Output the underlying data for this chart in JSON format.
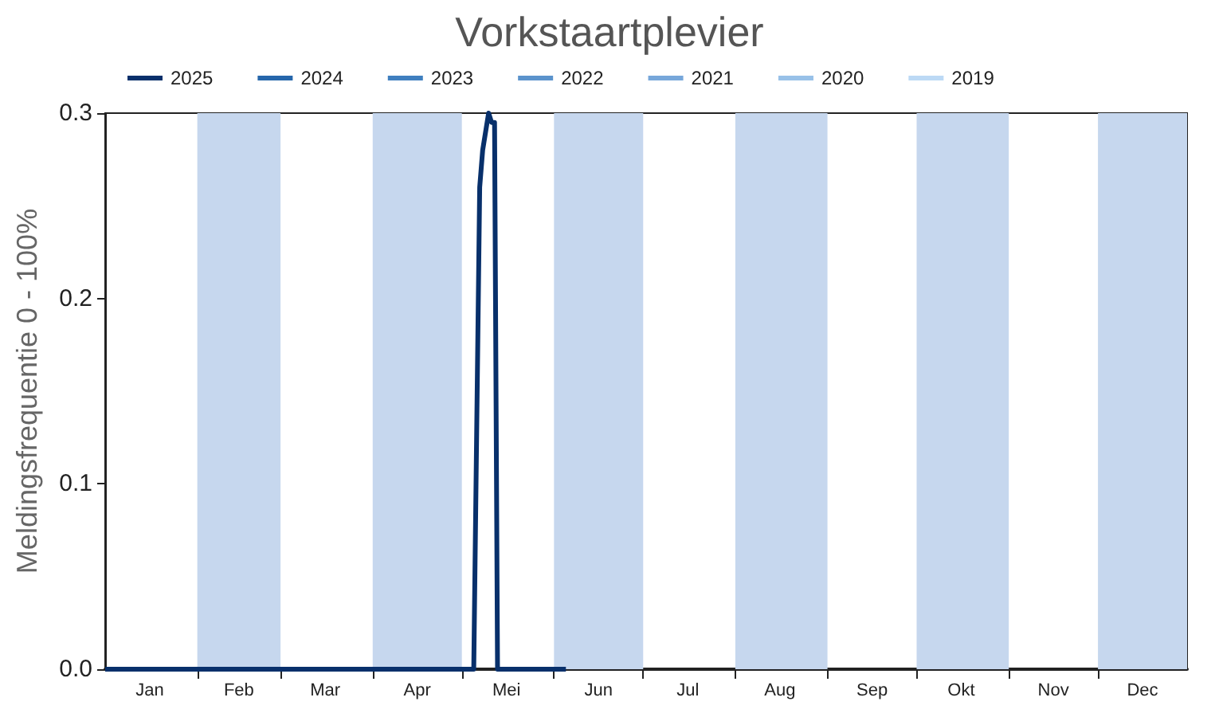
{
  "chart_data": {
    "type": "line",
    "title": "Vorkstaartplevier",
    "ylabel": "Meldingsfrequentie 0 - 100%",
    "series": [
      {
        "name": "2025",
        "color": "#08306b",
        "x": [
          "--01-01",
          "--05-05",
          "--05-07",
          "--05-08",
          "--05-10",
          "--05-11",
          "--05-12",
          "--05-13",
          "--06-05"
        ],
        "values": [
          0,
          0,
          0.26,
          0.28,
          0.3,
          0.295,
          0.295,
          0,
          0
        ]
      },
      {
        "name": "2024",
        "color": "#2666ab"
      },
      {
        "name": "2023",
        "color": "#3f7fbf"
      },
      {
        "name": "2022",
        "color": "#5b93cc"
      },
      {
        "name": "2021",
        "color": "#77a7da"
      },
      {
        "name": "2020",
        "color": "#98c1e8"
      },
      {
        "name": "2019",
        "color": "#bcd9f5"
      }
    ],
    "xlim": [
      "--01-01",
      "--12-31"
    ],
    "xticks": [
      {
        "value": "--01-16",
        "label": "Jan"
      },
      {
        "value": "--02-01",
        "label": null
      },
      {
        "value": "--02-15",
        "label": "Feb"
      },
      {
        "value": "--03-01",
        "label": null
      },
      {
        "value": "--03-16",
        "label": "Mar"
      },
      {
        "value": "--04-01",
        "label": null
      },
      {
        "value": "--04-16",
        "label": "Apr"
      },
      {
        "value": "--05-01",
        "label": null
      },
      {
        "value": "--05-16",
        "label": "Mei"
      },
      {
        "value": "--06-01",
        "label": null
      },
      {
        "value": "--06-16",
        "label": "Jun"
      },
      {
        "value": "--07-01",
        "label": null
      },
      {
        "value": "--07-16",
        "label": "Jul"
      },
      {
        "value": "--08-01",
        "label": null
      },
      {
        "value": "--08-16",
        "label": "Aug"
      },
      {
        "value": "--09-01",
        "label": null
      },
      {
        "value": "--09-16",
        "label": "Sep"
      },
      {
        "value": "--10-01",
        "label": null
      },
      {
        "value": "--10-16",
        "label": "Okt"
      },
      {
        "value": "--11-01",
        "label": null
      },
      {
        "value": "--11-16",
        "label": "Nov"
      },
      {
        "value": "--12-01",
        "label": null
      },
      {
        "value": "--12-16",
        "label": "Dec"
      }
    ],
    "ylim": [
      0,
      0.3
    ],
    "yticks": [
      {
        "value": 0,
        "label": "0.0"
      },
      {
        "value": 0.1,
        "label": "0.1"
      },
      {
        "value": 0.2,
        "label": "0.2"
      },
      {
        "value": 0.3,
        "label": "0.3"
      }
    ],
    "bands": [
      {
        "axis": "x",
        "from": "--02-01",
        "to": "--03-01",
        "color": "#c6d7ee"
      },
      {
        "axis": "x",
        "from": "--04-01",
        "to": "--05-01",
        "color": "#c6d7ee"
      },
      {
        "axis": "x",
        "from": "--06-01",
        "to": "--07-01",
        "color": "#c6d7ee"
      },
      {
        "axis": "x",
        "from": "--08-01",
        "to": "--09-01",
        "color": "#c6d7ee"
      },
      {
        "axis": "x",
        "from": "--10-01",
        "to": "--11-01",
        "color": "#c6d7ee"
      },
      {
        "axis": "x",
        "from": "--12-01",
        "to": "--12-31",
        "color": "#c6d7ee"
      }
    ],
    "grid": false,
    "legend": "top",
    "marker": "none",
    "line_style": "solid"
  }
}
